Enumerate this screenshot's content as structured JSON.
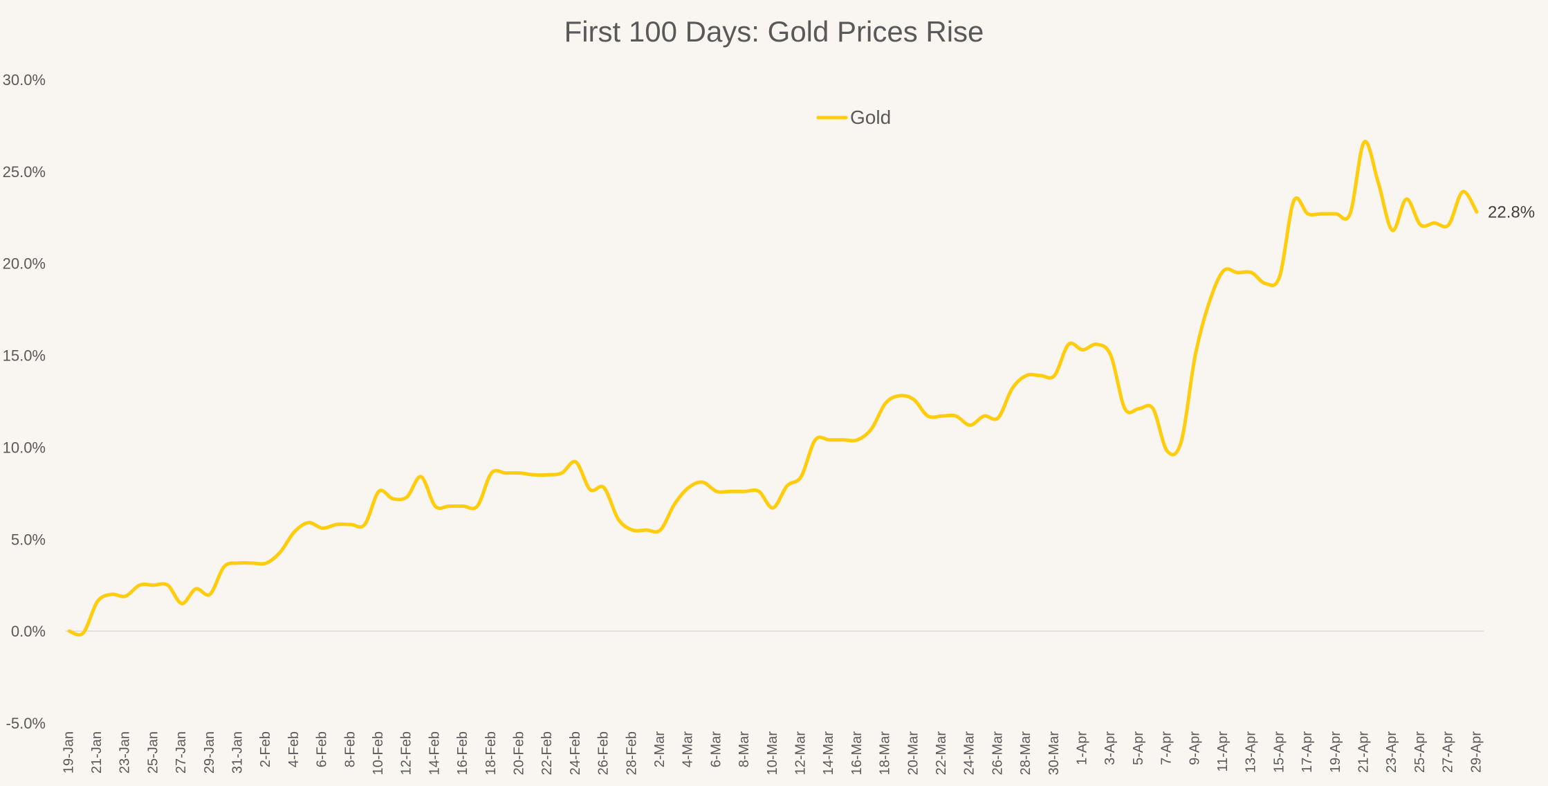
{
  "chart_data": {
    "type": "line",
    "title": "First 100 Days: Gold Prices Rise",
    "xlabel": "",
    "ylabel": "",
    "ylim": [
      -5,
      30
    ],
    "yticks": [
      -5,
      0,
      5,
      10,
      15,
      20,
      25,
      30
    ],
    "ytick_labels": [
      "-5.0%",
      "0.0%",
      "5.0%",
      "10.0%",
      "15.0%",
      "20.0%",
      "25.0%",
      "30.0%"
    ],
    "legend_position": "top-center",
    "grid": false,
    "end_label": "22.8%",
    "colors": {
      "line": "#ffcc0e",
      "text": "#595959",
      "zero_line": "#d9d9d9",
      "background": "#f9f5f1"
    },
    "x": [
      "19-Jan",
      "20-Jan",
      "21-Jan",
      "22-Jan",
      "23-Jan",
      "24-Jan",
      "25-Jan",
      "26-Jan",
      "27-Jan",
      "28-Jan",
      "29-Jan",
      "30-Jan",
      "31-Jan",
      "1-Feb",
      "2-Feb",
      "3-Feb",
      "4-Feb",
      "5-Feb",
      "6-Feb",
      "7-Feb",
      "8-Feb",
      "9-Feb",
      "10-Feb",
      "11-Feb",
      "12-Feb",
      "13-Feb",
      "14-Feb",
      "15-Feb",
      "16-Feb",
      "17-Feb",
      "18-Feb",
      "19-Feb",
      "20-Feb",
      "21-Feb",
      "22-Feb",
      "23-Feb",
      "24-Feb",
      "25-Feb",
      "26-Feb",
      "27-Feb",
      "28-Feb",
      "1-Mar",
      "2-Mar",
      "3-Mar",
      "4-Mar",
      "5-Mar",
      "6-Mar",
      "7-Mar",
      "8-Mar",
      "9-Mar",
      "10-Mar",
      "11-Mar",
      "12-Mar",
      "13-Mar",
      "14-Mar",
      "15-Mar",
      "16-Mar",
      "17-Mar",
      "18-Mar",
      "19-Mar",
      "20-Mar",
      "21-Mar",
      "22-Mar",
      "23-Mar",
      "24-Mar",
      "25-Mar",
      "26-Mar",
      "27-Mar",
      "28-Mar",
      "29-Mar",
      "30-Mar",
      "31-Mar",
      "1-Apr",
      "2-Apr",
      "3-Apr",
      "4-Apr",
      "5-Apr",
      "6-Apr",
      "7-Apr",
      "8-Apr",
      "9-Apr",
      "10-Apr",
      "11-Apr",
      "12-Apr",
      "13-Apr",
      "14-Apr",
      "15-Apr",
      "16-Apr",
      "17-Apr",
      "18-Apr",
      "19-Apr",
      "20-Apr",
      "21-Apr",
      "22-Apr",
      "23-Apr",
      "24-Apr",
      "25-Apr",
      "26-Apr",
      "27-Apr",
      "28-Apr",
      "29-Apr"
    ],
    "x_tick_labels": [
      "19-Jan",
      "21-Jan",
      "23-Jan",
      "25-Jan",
      "27-Jan",
      "29-Jan",
      "31-Jan",
      "2-Feb",
      "4-Feb",
      "6-Feb",
      "8-Feb",
      "10-Feb",
      "12-Feb",
      "14-Feb",
      "16-Feb",
      "18-Feb",
      "20-Feb",
      "22-Feb",
      "24-Feb",
      "26-Feb",
      "28-Feb",
      "2-Mar",
      "4-Mar",
      "6-Mar",
      "8-Mar",
      "10-Mar",
      "12-Mar",
      "14-Mar",
      "16-Mar",
      "18-Mar",
      "20-Mar",
      "22-Mar",
      "24-Mar",
      "26-Mar",
      "28-Mar",
      "30-Mar",
      "1-Apr",
      "3-Apr",
      "5-Apr",
      "7-Apr",
      "9-Apr",
      "11-Apr",
      "13-Apr",
      "15-Apr",
      "17-Apr",
      "19-Apr",
      "21-Apr",
      "23-Apr",
      "25-Apr",
      "27-Apr",
      "29-Apr"
    ],
    "series": [
      {
        "name": "Gold",
        "values": [
          0.0,
          -0.1,
          1.6,
          2.0,
          1.9,
          2.5,
          2.5,
          2.5,
          1.5,
          2.3,
          2.0,
          3.5,
          3.7,
          3.7,
          3.7,
          4.3,
          5.4,
          5.9,
          5.6,
          5.8,
          5.8,
          5.8,
          7.6,
          7.2,
          7.3,
          8.4,
          6.8,
          6.8,
          6.8,
          6.8,
          8.6,
          8.6,
          8.6,
          8.5,
          8.5,
          8.6,
          9.2,
          7.7,
          7.8,
          6.1,
          5.5,
          5.5,
          5.5,
          6.9,
          7.8,
          8.1,
          7.6,
          7.6,
          7.6,
          7.6,
          6.7,
          7.9,
          8.4,
          10.4,
          10.4,
          10.4,
          10.4,
          11.0,
          12.4,
          12.8,
          12.6,
          11.7,
          11.7,
          11.7,
          11.2,
          11.7,
          11.6,
          13.2,
          13.9,
          13.9,
          13.9,
          15.6,
          15.3,
          15.6,
          15.0,
          12.1,
          12.1,
          12.1,
          9.8,
          10.3,
          15.0,
          17.9,
          19.6,
          19.5,
          19.5,
          18.9,
          19.3,
          23.4,
          22.7,
          22.7,
          22.7,
          22.7,
          26.6,
          24.4,
          21.8,
          23.5,
          22.1,
          22.2,
          22.1,
          23.9,
          22.8
        ]
      }
    ]
  }
}
